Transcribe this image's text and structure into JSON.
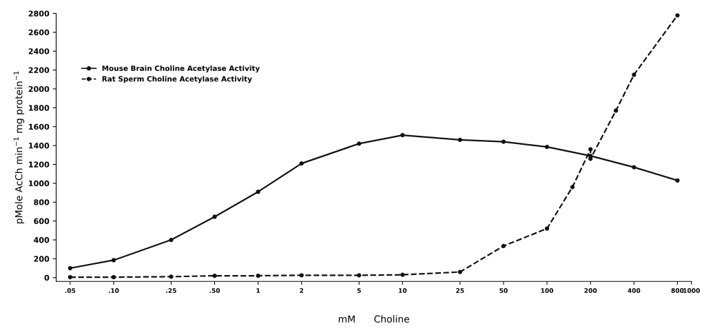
{
  "chart_data": {
    "type": "line",
    "xlabel": "mM      Choline",
    "ylabel": "pMole AcCh min$^{−1}$ mg protein$^{−1}$",
    "xlim": [
      0.04,
      1000
    ],
    "ylim": [
      -40,
      2800
    ],
    "xticks": [
      {
        "value": 0.05,
        "label": ".05"
      },
      {
        "value": 0.1,
        "label": ".10"
      },
      {
        "value": 0.25,
        "label": ".25"
      },
      {
        "value": 0.5,
        "label": ".50"
      },
      1,
      2,
      5,
      10,
      25,
      50,
      100,
      200,
      400,
      800,
      1000
    ],
    "yticks": [
      0,
      200,
      400,
      600,
      800,
      1000,
      1200,
      1400,
      1600,
      1800,
      2000,
      2200,
      2400,
      2600,
      2800
    ],
    "grid": false,
    "legend": "top left",
    "marker": "circle",
    "log": "x",
    "series": [
      {
        "name": "Mouse Brain Choline Acetylase Activity",
        "color": "#111111",
        "line_style": "solid",
        "x": [
          0.05,
          0.1,
          0.25,
          0.5,
          1,
          2,
          5,
          10,
          25,
          50,
          100,
          200,
          400,
          800
        ],
        "values": [
          100,
          185,
          400,
          645,
          910,
          1210,
          1420,
          1510,
          1460,
          1440,
          1385,
          1290,
          1170,
          1030
        ]
      },
      {
        "name": "Rat Sperm Choline Acetylase Activity",
        "color": "#111111",
        "line_style": "dashed",
        "x": [
          0.05,
          0.1,
          0.25,
          0.5,
          1,
          2,
          5,
          10,
          25,
          50,
          100,
          150,
          200,
          200,
          300,
          400,
          800
        ],
        "values": [
          5,
          5,
          10,
          20,
          20,
          25,
          25,
          30,
          60,
          335,
          520,
          960,
          1360,
          1260,
          1770,
          2150,
          2780
        ]
      }
    ]
  }
}
